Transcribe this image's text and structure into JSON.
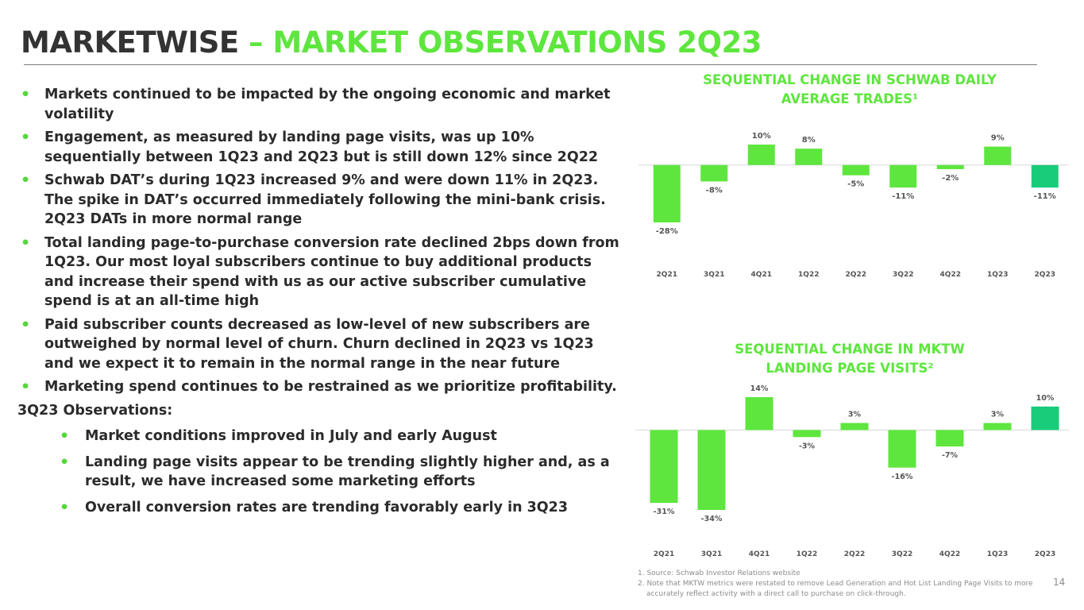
{
  "header": {
    "title_part1": "MARKETWISE",
    "title_part2": "– MARKET OBSERVATIONS 2Q23"
  },
  "bullets": [
    "Markets continued to be impacted by the ongoing economic and market volatility",
    "Engagement, as measured by landing page visits, was up 10% sequentially between 1Q23 and 2Q23 but is still down 12% since 2Q22",
    "Schwab DAT’s during 1Q23 increased 9% and were down 11% in 2Q23.  The spike in DAT’s occurred immediately following the mini-bank crisis.  2Q23 DATs in more normal range",
    "Total landing page-to-purchase conversion rate declined 2bps down from 1Q23. Our most loyal subscribers continue to buy additional products and increase their spend with us as our active subscriber cumulative spend is at an all-time high",
    "Paid subscriber counts decreased as low-level of new subscribers are outweighed by normal level of churn.  Churn declined in 2Q23 vs 1Q23 and we expect it to remain in the normal range in the near future",
    "Marketing spend continues to be restrained as we prioritize profitability."
  ],
  "observations": {
    "heading": "3Q23 Observations:",
    "items": [
      "Market conditions improved in July and early August",
      "Landing page visits appear to be trending slightly higher and, as a result, we have increased some marketing efforts",
      "Overall conversion rates are trending favorably early in 3Q23"
    ]
  },
  "colors": {
    "bar": "#5ee63e",
    "bar_highlight": "#19cc7a",
    "accent": "#5ee63e"
  },
  "chart_data": [
    {
      "type": "bar",
      "title_line1": "SEQUENTIAL CHANGE IN SCHWAB DAILY",
      "title_line2": "AVERAGE TRADES¹",
      "categories": [
        "2Q21",
        "3Q21",
        "4Q21",
        "1Q22",
        "2Q22",
        "3Q22",
        "4Q22",
        "1Q23",
        "2Q23"
      ],
      "values": [
        -28,
        -8,
        10,
        8,
        -5,
        -11,
        -2,
        9,
        -11
      ],
      "labels": [
        "-28%",
        "-8%",
        "10%",
        "8%",
        "-5%",
        "-11%",
        "-2%",
        "9%",
        "-11%"
      ],
      "ylim": [
        -28,
        10
      ],
      "highlight_index": 8
    },
    {
      "type": "bar",
      "title_line1": "SEQUENTIAL CHANGE IN MKTW",
      "title_line2": "LANDING PAGE VISITS²",
      "categories": [
        "2Q21",
        "3Q21",
        "4Q21",
        "1Q22",
        "2Q22",
        "3Q22",
        "4Q22",
        "1Q23",
        "2Q23"
      ],
      "values": [
        -31,
        -34,
        14,
        -3,
        3,
        -16,
        -7,
        3,
        10
      ],
      "labels": [
        "-31%",
        "-34%",
        "14%",
        "-3%",
        "3%",
        "-16%",
        "-7%",
        "3%",
        "10%"
      ],
      "ylim": [
        -34,
        14
      ],
      "highlight_index": 8
    }
  ],
  "footnotes": [
    "1. Source:  Schwab Investor Relations website",
    "2. Note that MKTW metrics were restated to remove Lead Generation and Hot List Landing Page Visits to more accurately reflect activity with a direct call to purchase on click-through."
  ],
  "page_number": "14"
}
